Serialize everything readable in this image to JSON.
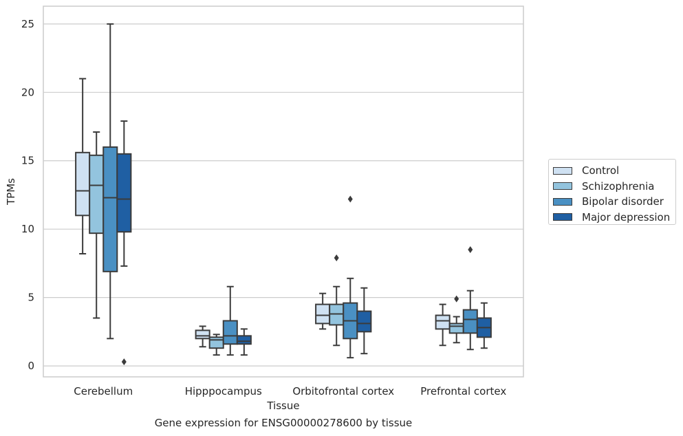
{
  "chart_data": {
    "type": "boxplot",
    "title": "",
    "caption": "Gene expression for ENSG00000278600 by tissue",
    "xlabel": "Tissue",
    "ylabel": "TPMs",
    "ylim": [
      -0.8,
      26.3
    ],
    "yticks": [
      0,
      5,
      10,
      15,
      20,
      25
    ],
    "grid": "horizontal",
    "legend_position": "right",
    "categories": [
      "Cerebellum",
      "Hipppocampus",
      "Orbitofrontal cortex",
      "Prefrontal cortex"
    ],
    "series": [
      {
        "name": "Control",
        "color": "#cfe1f2",
        "boxes": [
          {
            "whislo": 8.2,
            "q1": 11.0,
            "med": 12.8,
            "q3": 15.6,
            "whishi": 21.0,
            "fliers": []
          },
          {
            "whislo": 1.4,
            "q1": 2.0,
            "med": 2.2,
            "q3": 2.6,
            "whishi": 2.9,
            "fliers": []
          },
          {
            "whislo": 2.7,
            "q1": 3.1,
            "med": 3.7,
            "q3": 4.5,
            "whishi": 5.3,
            "fliers": []
          },
          {
            "whislo": 1.5,
            "q1": 2.7,
            "med": 3.3,
            "q3": 3.7,
            "whishi": 4.5,
            "fliers": []
          }
        ]
      },
      {
        "name": "Schizophrenia",
        "color": "#93c4de",
        "boxes": [
          {
            "whislo": 3.5,
            "q1": 9.7,
            "med": 13.2,
            "q3": 15.4,
            "whishi": 17.1,
            "fliers": []
          },
          {
            "whislo": 0.8,
            "q1": 1.3,
            "med": 1.9,
            "q3": 2.1,
            "whishi": 2.3,
            "fliers": []
          },
          {
            "whislo": 1.5,
            "q1": 3.0,
            "med": 3.8,
            "q3": 4.5,
            "whishi": 5.8,
            "fliers": [
              7.9
            ]
          },
          {
            "whislo": 1.7,
            "q1": 2.4,
            "med": 2.9,
            "q3": 3.1,
            "whishi": 3.6,
            "fliers": [
              4.9
            ]
          }
        ]
      },
      {
        "name": "Bipolar disorder",
        "color": "#4a90c3",
        "boxes": [
          {
            "whislo": 2.0,
            "q1": 6.9,
            "med": 12.3,
            "q3": 16.0,
            "whishi": 25.0,
            "fliers": []
          },
          {
            "whislo": 0.8,
            "q1": 1.6,
            "med": 2.2,
            "q3": 3.3,
            "whishi": 5.8,
            "fliers": []
          },
          {
            "whislo": 0.6,
            "q1": 2.0,
            "med": 3.3,
            "q3": 4.6,
            "whishi": 6.4,
            "fliers": [
              12.2
            ]
          },
          {
            "whislo": 1.2,
            "q1": 2.4,
            "med": 3.4,
            "q3": 4.1,
            "whishi": 5.5,
            "fliers": [
              8.5
            ]
          }
        ]
      },
      {
        "name": "Major depression",
        "color": "#1f5fa3",
        "boxes": [
          {
            "whislo": 7.3,
            "q1": 9.8,
            "med": 12.2,
            "q3": 15.5,
            "whishi": 17.9,
            "fliers": [
              0.3
            ]
          },
          {
            "whislo": 0.8,
            "q1": 1.6,
            "med": 1.8,
            "q3": 2.2,
            "whishi": 2.7,
            "fliers": []
          },
          {
            "whislo": 0.9,
            "q1": 2.5,
            "med": 3.1,
            "q3": 4.0,
            "whishi": 5.7,
            "fliers": []
          },
          {
            "whislo": 1.3,
            "q1": 2.1,
            "med": 2.8,
            "q3": 3.5,
            "whishi": 4.6,
            "fliers": []
          }
        ]
      }
    ]
  }
}
